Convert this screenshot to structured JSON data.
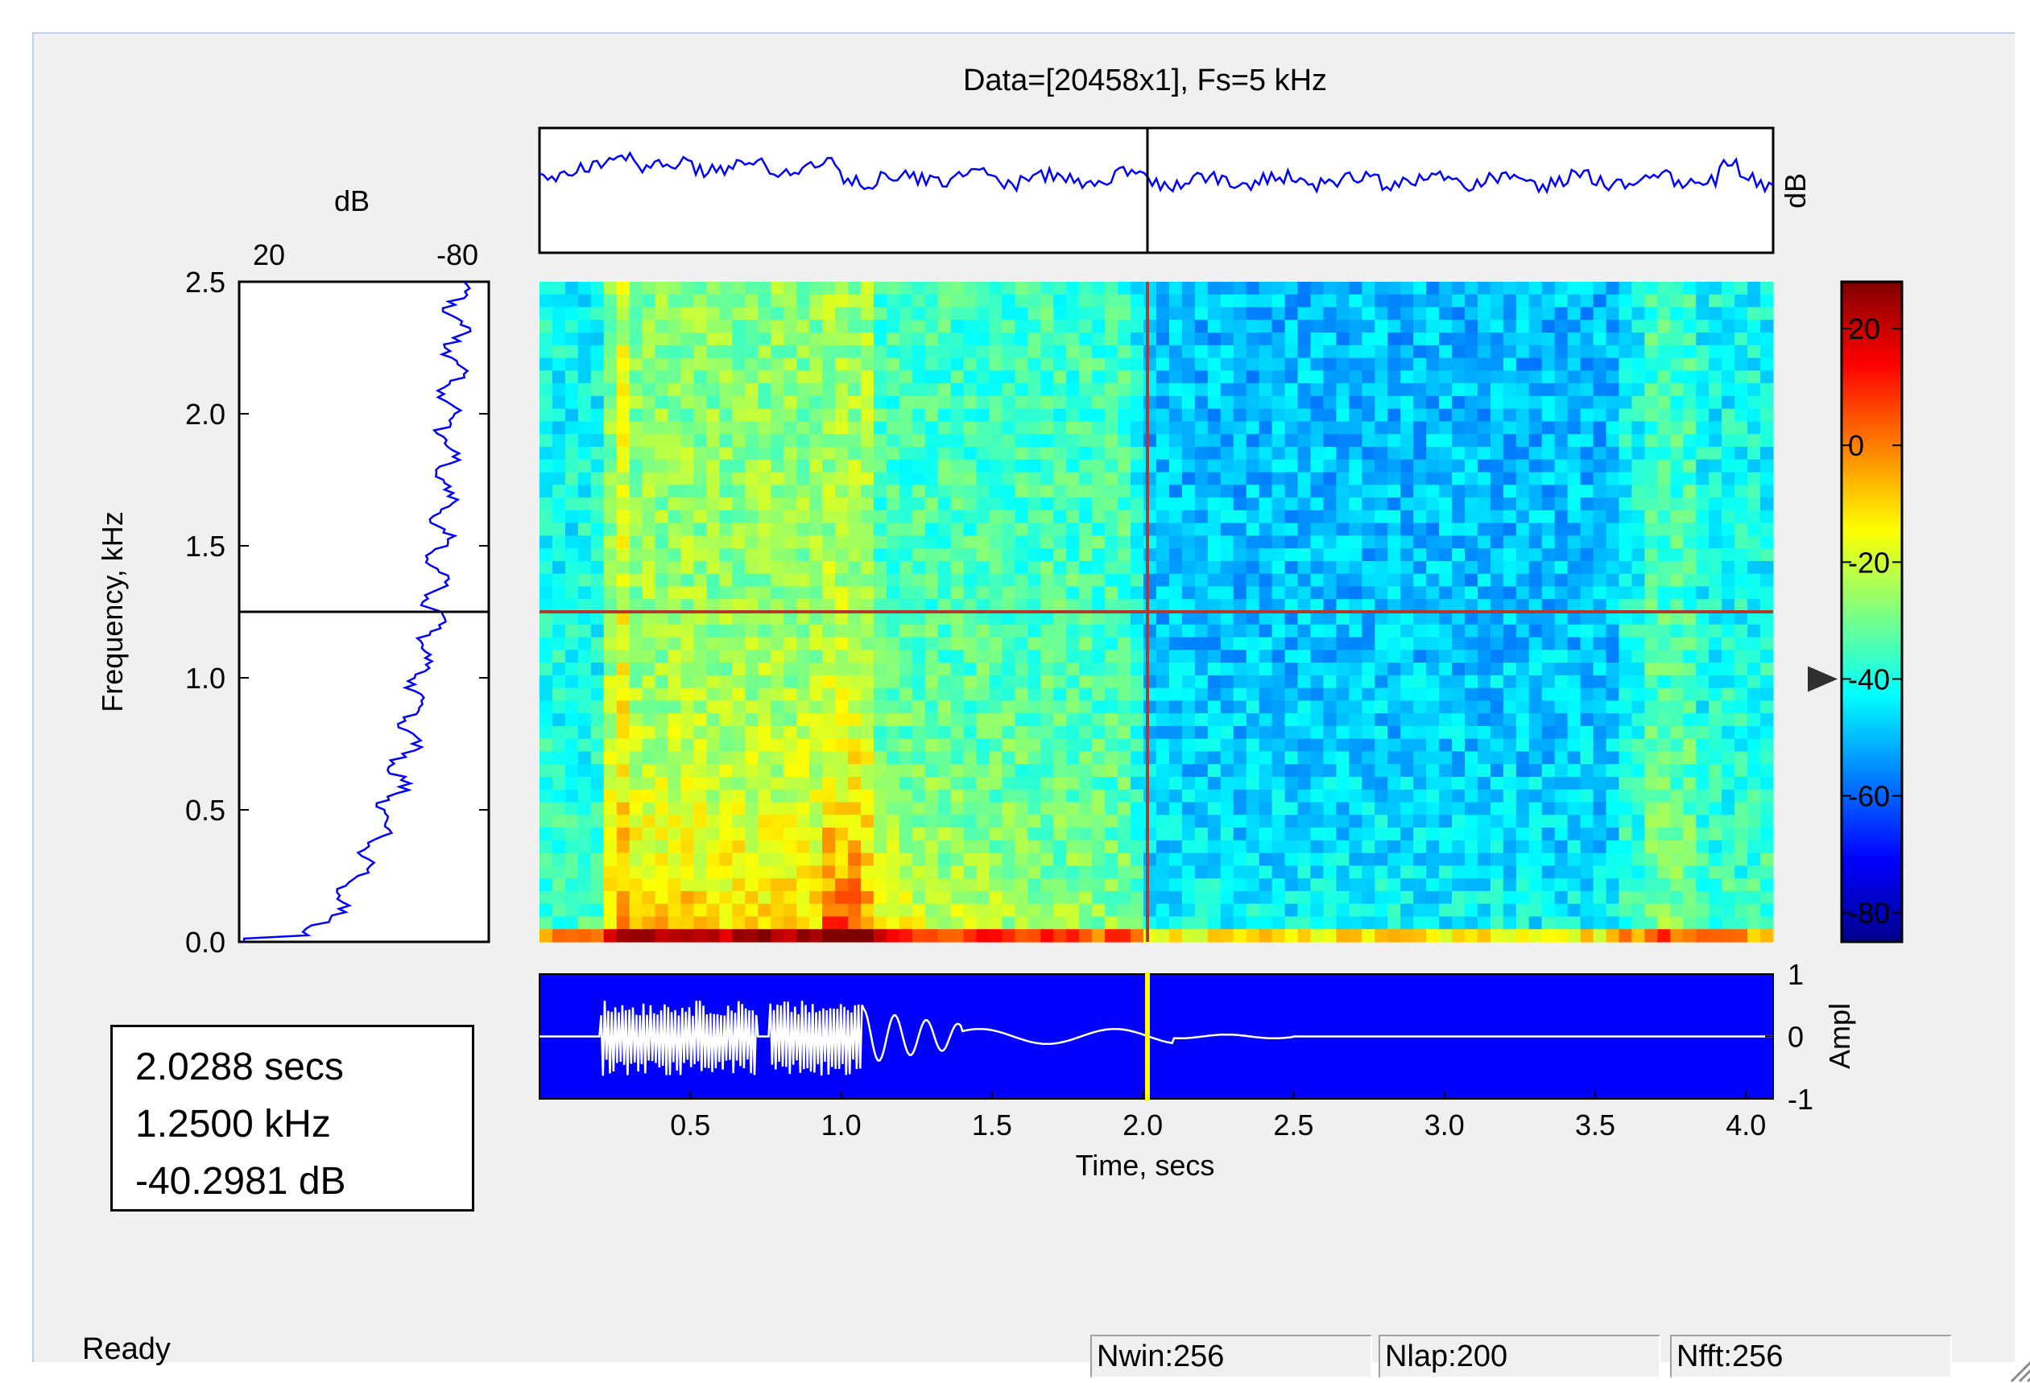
{
  "figure": {
    "title": "Data=[20458x1], Fs=5 kHz",
    "spectrum_axis_label": "dB",
    "spectrum_range": [
      20,
      -80
    ],
    "spectrum_ticks": [
      "20",
      "-80"
    ],
    "freq_ylabel": "Frequency, kHz",
    "freq_ticks": [
      "2.5",
      "2.0",
      "1.5",
      "1.0",
      "0.5",
      "0.0"
    ],
    "freq_range_khz": [
      0,
      2.5
    ],
    "top_strip_label": "dB",
    "colorbar_ticks": [
      "20",
      "0",
      "-20",
      "-40",
      "-60",
      "-80"
    ],
    "colorbar_range_db": [
      -85,
      28
    ],
    "colorbar_marker_db": -40,
    "time_xlabel": "Time, secs",
    "time_ticks": [
      "0.5",
      "1.0",
      "1.5",
      "2.0",
      "2.5",
      "3.0",
      "3.5",
      "4.0"
    ],
    "time_range_s": [
      0,
      4.09
    ],
    "ampl_label": "Ampl",
    "ampl_ticks": [
      "1",
      "0",
      "-1"
    ],
    "cursor_time_s": 2.0288,
    "cursor_freq_khz": 1.25,
    "colors": {
      "waveform_bg": "#0000ff",
      "trace": "#0000ff",
      "cursor_line": "#b03a2e",
      "time_cursor": "#ffff00"
    }
  },
  "readout": {
    "time": "2.0288 secs",
    "freq": "1.2500 kHz",
    "level": "-40.2981 dB"
  },
  "statusbar": {
    "status": "Ready",
    "nwin": "Nwin:256",
    "nlap": "Nlap:200",
    "nfft": "Nfft:256"
  }
}
